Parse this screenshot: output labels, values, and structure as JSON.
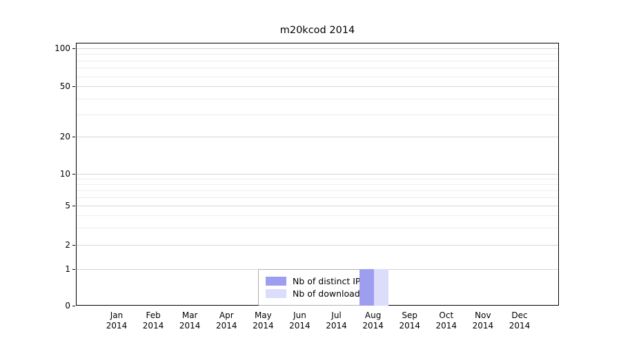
{
  "chart_data": {
    "type": "bar",
    "title": "m20kcod 2014",
    "x_categories": [
      "Jan",
      "Feb",
      "Mar",
      "Apr",
      "May",
      "Jun",
      "Jul",
      "Aug",
      "Sep",
      "Oct",
      "Nov",
      "Dec"
    ],
    "x_year": "2014",
    "series": [
      {
        "name": "Nb of distinct IPs",
        "color": "#9e9ef0",
        "values": [
          0,
          0,
          0,
          0,
          0,
          0,
          0,
          1,
          0,
          0,
          0,
          0
        ]
      },
      {
        "name": "Nb of downloads",
        "color": "#dcdcfb",
        "values": [
          0,
          0,
          0,
          0,
          0,
          0,
          0,
          1,
          0,
          0,
          0,
          0
        ]
      }
    ],
    "y_ticks": [
      0,
      1,
      2,
      5,
      10,
      20,
      50,
      100
    ],
    "y_minor_ticks": [
      3,
      4,
      6,
      7,
      8,
      9,
      30,
      40,
      60,
      70,
      80,
      90
    ],
    "y_scale": "symlog",
    "ylim": [
      0,
      112
    ],
    "grid": true,
    "legend_position": "lower center"
  },
  "colors": {
    "grid_major": "#d6d6d6",
    "grid_minor": "#ececec",
    "axis": "#000000",
    "legend_border": "#b0b0b0",
    "background": "#ffffff"
  }
}
